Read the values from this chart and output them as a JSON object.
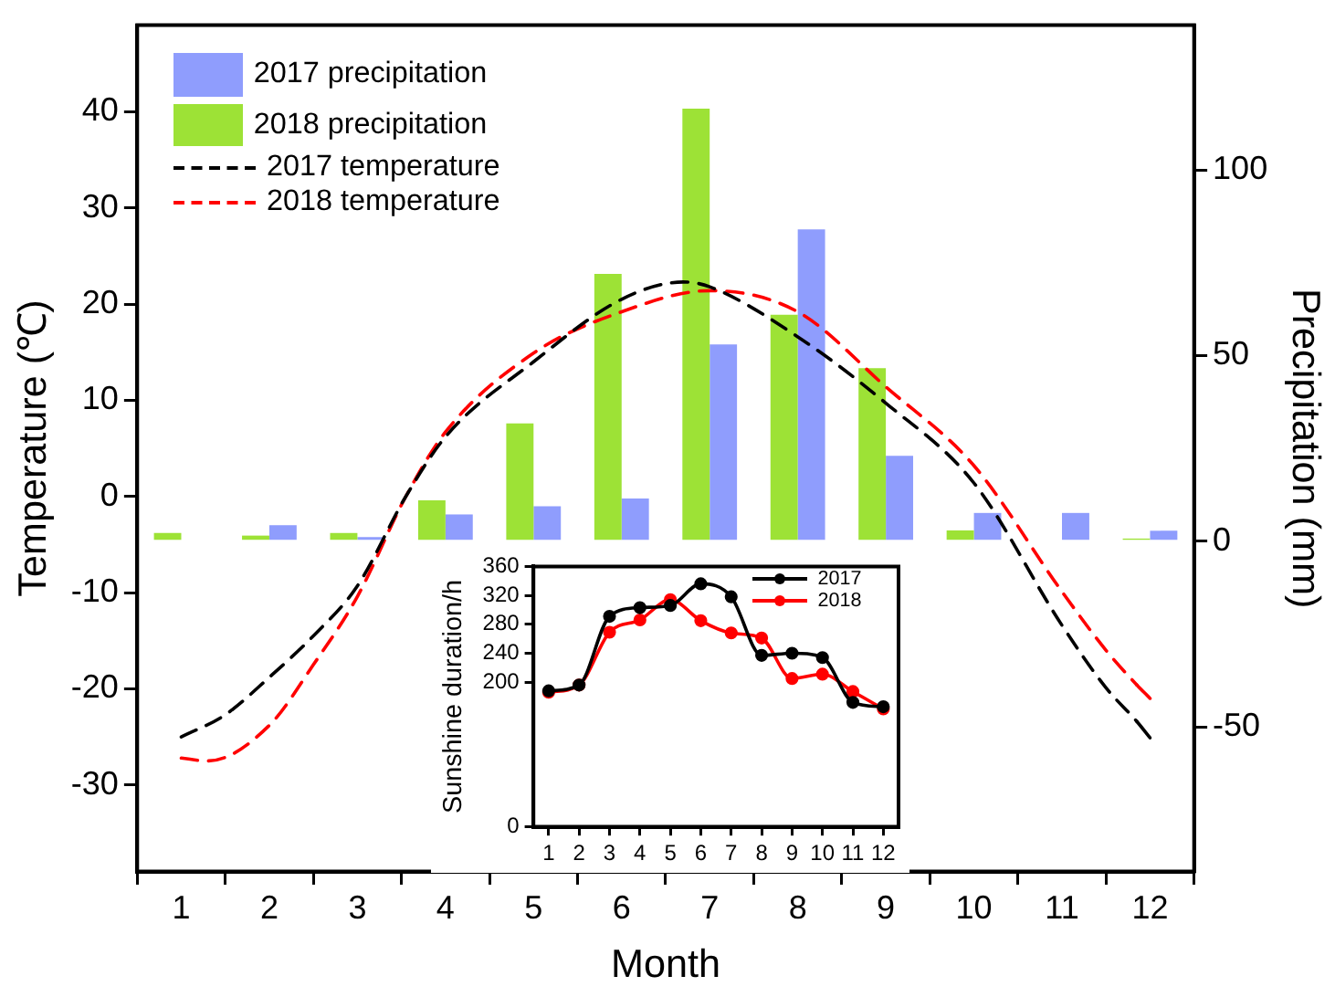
{
  "chart_data": [
    {
      "type": "bar",
      "xlabel": "Month",
      "ylabel": "Temperature (℃)",
      "y2label": "Precipitation (mm)",
      "x": [
        1,
        2,
        3,
        4,
        5,
        6,
        7,
        8,
        9,
        10,
        11,
        12
      ],
      "xlim": [
        0.5,
        12.5
      ],
      "xticks": [
        1,
        2,
        3,
        4,
        5,
        6,
        7,
        8,
        9,
        10,
        11,
        12
      ],
      "ylim": [
        -39,
        49
      ],
      "yticks": [
        -30,
        -20,
        -10,
        0,
        10,
        20,
        30,
        40
      ],
      "y2lim": [
        -89,
        139
      ],
      "y2ticks": [
        -50,
        0,
        50,
        100
      ],
      "grid": false,
      "legend": "top left",
      "series": [
        {
          "name": "2017 precipitation",
          "axis": "y2",
          "color": "#8f9dfd",
          "values": [
            0,
            4.3,
            1.1,
            7.2,
            9.4,
            11.5,
            53,
            84,
            23,
            7.6,
            7.6,
            2.8
          ]
        },
        {
          "name": "2018 precipitation",
          "axis": "y2",
          "color": "#9de236",
          "values": [
            2.2,
            1.5,
            2.2,
            11,
            31.7,
            72,
            116.5,
            61,
            46.6,
            2.9,
            0,
            0.7
          ]
        },
        {
          "name": "2017 temperature",
          "type": "line",
          "line_style": "dashed",
          "marker": "none",
          "color": "#000000",
          "x": [
            1,
            1.5,
            2,
            2.5,
            3,
            3.55,
            4,
            5,
            6,
            6.7,
            7,
            8,
            9,
            10,
            11,
            11.5,
            11.85,
            12
          ],
          "values": [
            -25,
            -22.7,
            -18.8,
            -14.5,
            -9.3,
            0,
            6.2,
            14,
            20.5,
            22.3,
            21.8,
            16.6,
            9.7,
            1.4,
            -13.4,
            -19.9,
            -23.4,
            -25.1
          ]
        },
        {
          "name": "2018 temperature",
          "type": "line",
          "line_style": "dashed",
          "marker": "none",
          "color": "#ff0000",
          "x": [
            1,
            1.3,
            2,
            2.5,
            3,
            3.55,
            4,
            5,
            6,
            7,
            8,
            9,
            10,
            11,
            11.5,
            11.85,
            12
          ],
          "values": [
            -27.2,
            -27.5,
            -23.8,
            -17.5,
            -10.4,
            0,
            6.7,
            14.9,
            19.2,
            21.4,
            19.2,
            11.4,
            3.2,
            -9.9,
            -16,
            -19.6,
            -21
          ]
        }
      ]
    },
    {
      "type": "line",
      "ylabel": "Sunshine duration/h",
      "x": [
        1,
        2,
        3,
        4,
        5,
        6,
        7,
        8,
        9,
        10,
        11,
        12
      ],
      "xlim": [
        0.5,
        12.5
      ],
      "xticks": [
        1,
        2,
        3,
        4,
        5,
        6,
        7,
        8,
        9,
        10,
        11,
        12
      ],
      "ylim": [
        0,
        360
      ],
      "yticks": [
        0,
        200,
        240,
        280,
        320,
        360
      ],
      "grid": false,
      "legend": "top right",
      "marker": "circle",
      "series": [
        {
          "name": "2017",
          "color": "#000000",
          "values": [
            188,
            196,
            291,
            303,
            306,
            336,
            318,
            237,
            240,
            234,
            172,
            166
          ]
        },
        {
          "name": "2018",
          "color": "#ff0000",
          "values": [
            186,
            196,
            269,
            286,
            314,
            285,
            268,
            261,
            205,
            211,
            187,
            163
          ]
        }
      ]
    }
  ]
}
